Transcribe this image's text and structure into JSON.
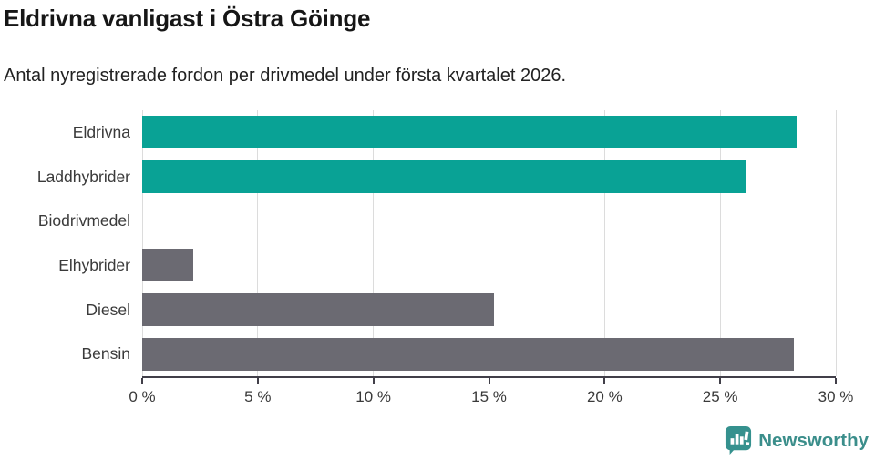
{
  "header": {
    "title": "Eldrivna vanligast i Östra Göinge",
    "subtitle": "Antal nyregistrerade fordon per drivmedel under första kvartalet 2026."
  },
  "chart_data": {
    "type": "bar",
    "orientation": "horizontal",
    "title": "Eldrivna vanligast i Östra Göinge",
    "subtitle": "Antal nyregistrerade fordon per drivmedel under första kvartalet 2026.",
    "categories": [
      "Eldrivna",
      "Laddhybrider",
      "Biodrivmedel",
      "Elhybrider",
      "Diesel",
      "Bensin"
    ],
    "values": [
      28.3,
      26.1,
      0,
      2.2,
      15.2,
      28.2
    ],
    "unit": "%",
    "bar_colors": [
      "#09a295",
      "#09a295",
      "#6b6a72",
      "#6b6a72",
      "#6b6a72",
      "#6b6a72"
    ],
    "xlim": [
      0,
      30
    ],
    "xticks": [
      0,
      5,
      10,
      15,
      20,
      25,
      30
    ],
    "xtick_labels": [
      "0 %",
      "5 %",
      "10 %",
      "15 %",
      "20 %",
      "25 %",
      "30 %"
    ],
    "grid": "vertical",
    "legend": "none"
  },
  "colors": {
    "accent_teal": "#09a295",
    "neutral_gray": "#6b6a72",
    "gridline": "#dcdcdc",
    "axis": "#413f49",
    "text_dark": "#161616",
    "text_label": "#3a3a3a",
    "brand_teal": "#3b8e8b"
  },
  "footer": {
    "brand": "Newsworthy",
    "logo_icon": "bar-chart-speech-bubble-icon"
  }
}
